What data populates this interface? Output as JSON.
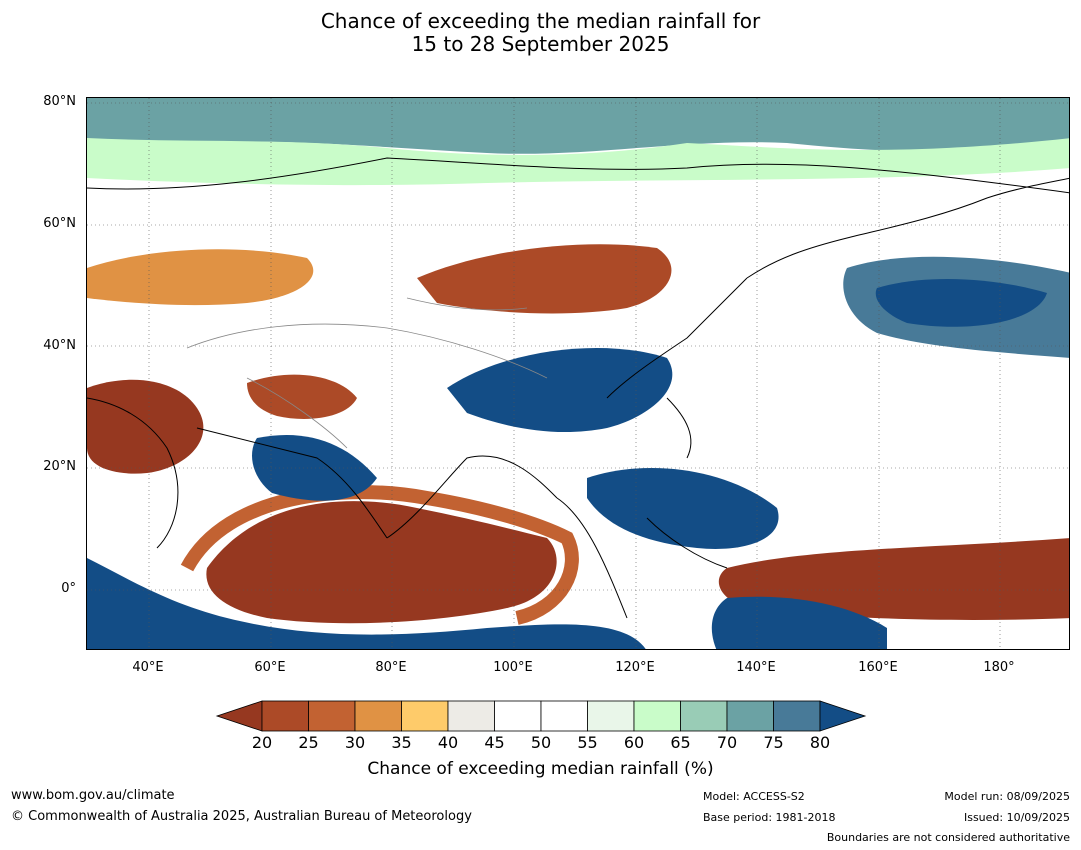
{
  "title": {
    "line1": "Chance of exceeding the median rainfall for",
    "line2": "15 to 28 September 2025"
  },
  "map": {
    "lat_labels": [
      "80°N",
      "60°N",
      "40°N",
      "20°N",
      "0°"
    ],
    "lon_labels": [
      "40°E",
      "60°E",
      "80°E",
      "100°E",
      "120°E",
      "140°E",
      "160°E",
      "180°"
    ]
  },
  "colorbar": {
    "ticks": [
      "20",
      "25",
      "30",
      "35",
      "40",
      "45",
      "50",
      "55",
      "60",
      "65",
      "70",
      "75",
      "80"
    ],
    "label": "Chance of exceeding median rainfall (%)",
    "colors": [
      "#963820",
      "#ac4a27",
      "#c26232",
      "#e09244",
      "#fecb6a",
      "#edebe6",
      "#ffffff",
      "#ffffff",
      "#e9f6e9",
      "#c9fcc9",
      "#99ccb6",
      "#6ba2a4",
      "#487a98",
      "#134d86"
    ]
  },
  "footer": {
    "website": "www.bom.gov.au/climate",
    "copyright": "© Commonwealth of Australia 2025, Australian Bureau of Meteorology",
    "model": "Model: ACCESS-S2",
    "base_period": "Base period: 1981-2018",
    "model_run": "Model run: 08/09/2025",
    "issued": "Issued: 10/09/2025",
    "disclaimer": "Boundaries are not considered authoritative"
  }
}
